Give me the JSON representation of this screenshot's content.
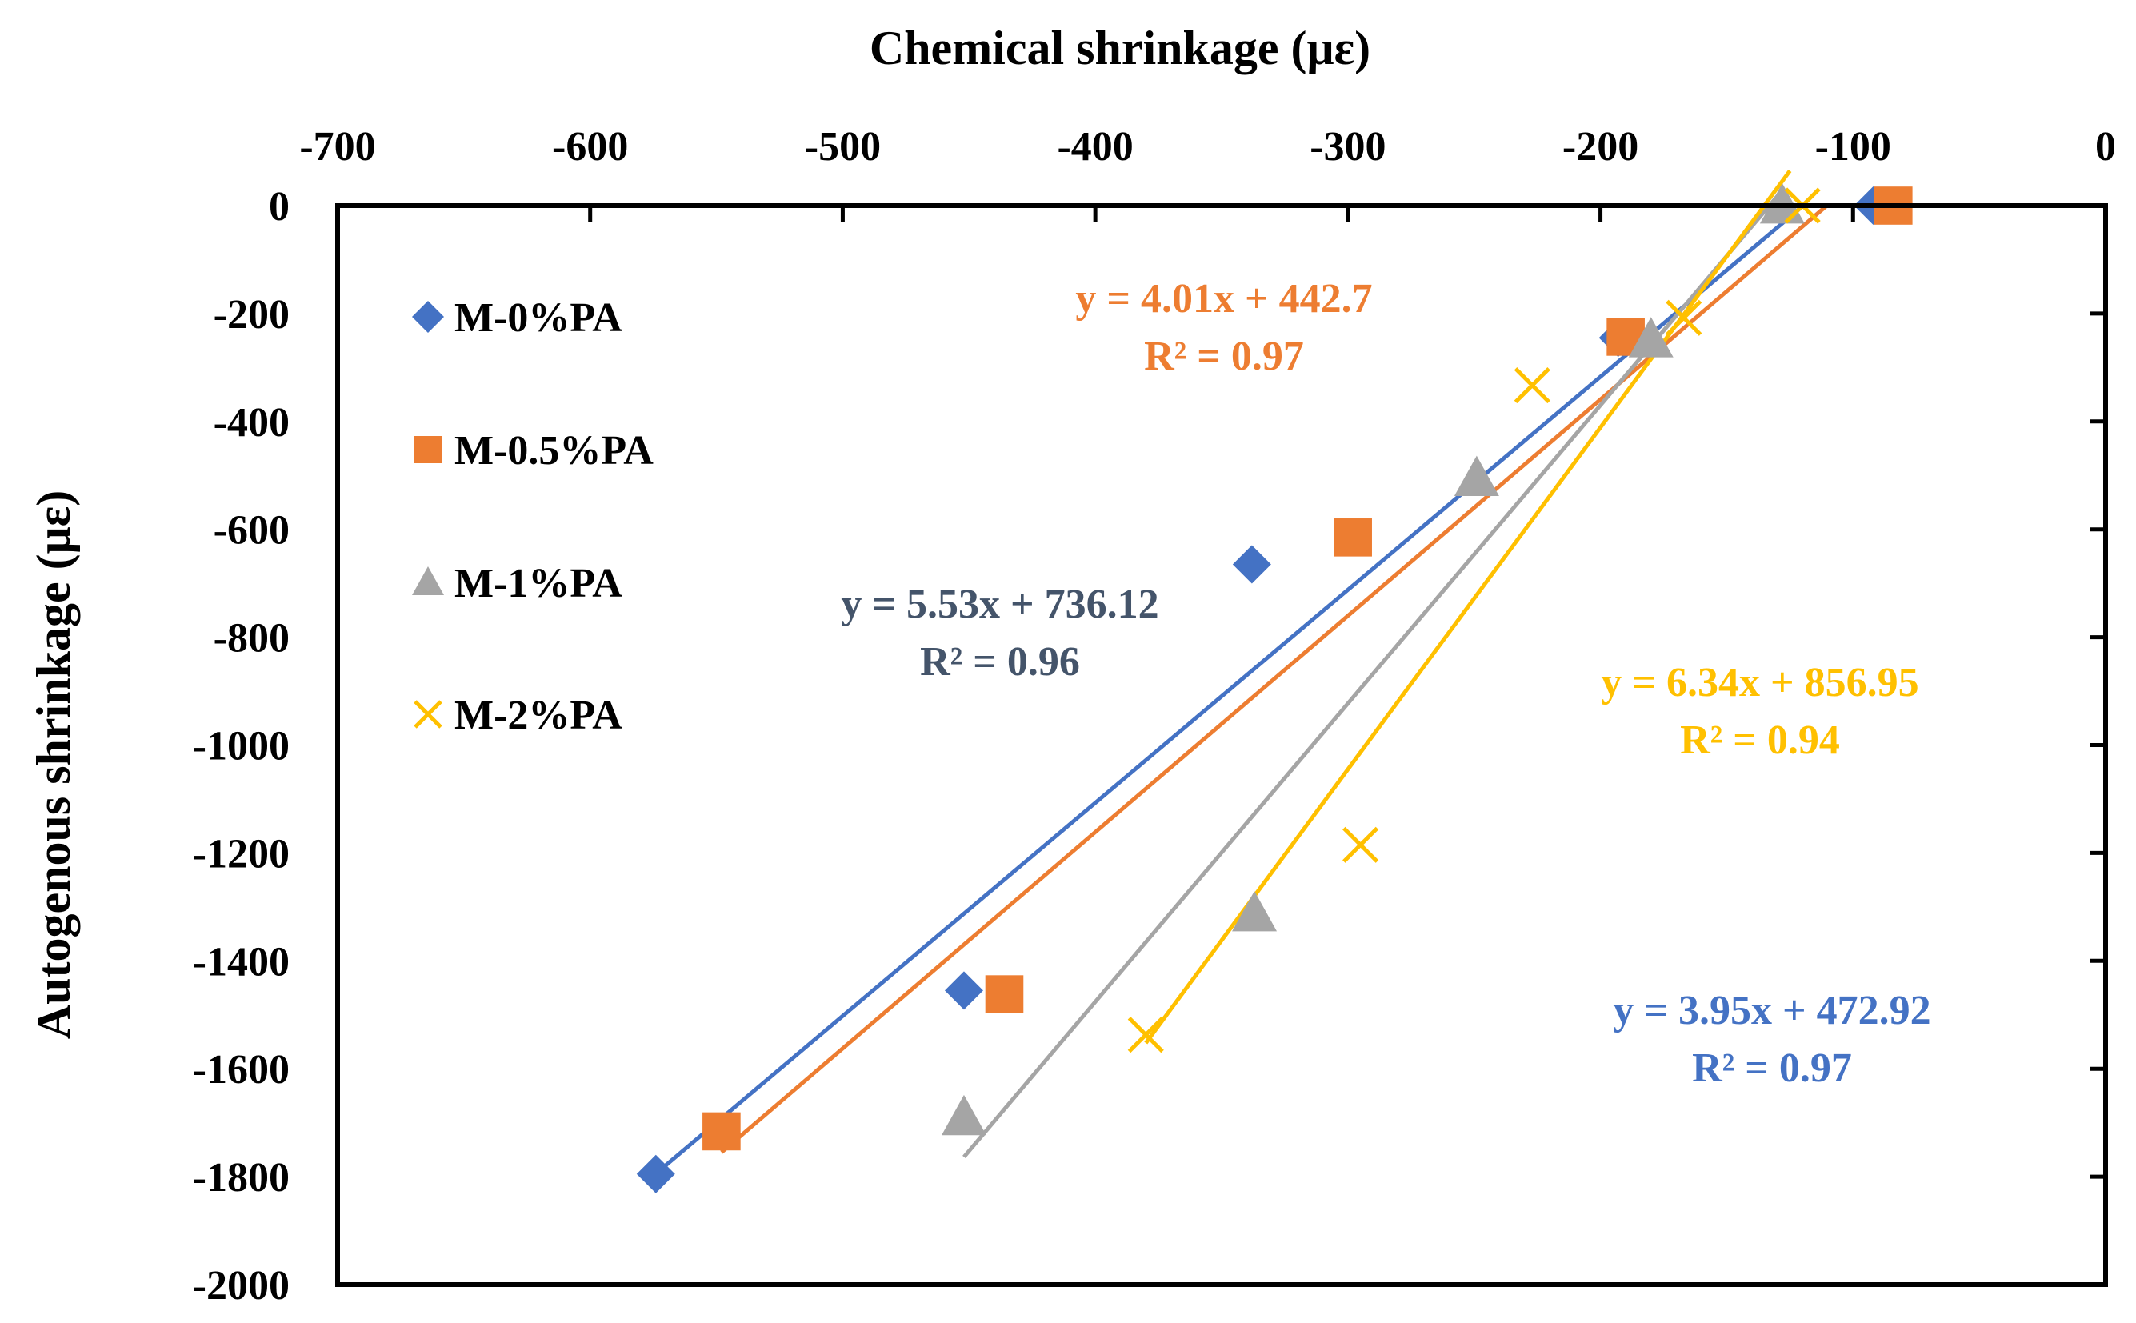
{
  "chart_data": {
    "type": "scatter",
    "title": "",
    "xlabel": "Chemical shrinkage (με)",
    "ylabel": "Autogenous shrinkage (με)",
    "xlim": [
      -700,
      0
    ],
    "ylim": [
      -2000,
      0
    ],
    "x_ticks": [
      -700,
      -600,
      -500,
      -400,
      -300,
      -200,
      -100,
      0
    ],
    "x_tick_labels": [
      "-700",
      "-600",
      "-500",
      "-400",
      "-300",
      "-200",
      "-100",
      "0"
    ],
    "y_ticks": [
      0,
      -200,
      -400,
      -600,
      -800,
      -1000,
      -1200,
      -1400,
      -1600,
      -1800,
      -2000
    ],
    "y_tick_labels": [
      "0",
      "-200",
      "-400",
      "-600",
      "-800",
      "-1000",
      "-1200",
      "-1400",
      "-1600",
      "-1800",
      "-2000"
    ],
    "x_axis_position": "top",
    "grid": false,
    "legend_position": "top-left",
    "series": [
      {
        "name": "M-0%PA",
        "marker": "diamond",
        "color": "#4472C4",
        "x": [
          -92,
          -193,
          -338,
          -452,
          -574
        ],
        "y": [
          0,
          -245,
          -665,
          -1455,
          -1795
        ],
        "trendline": {
          "slope": 3.95,
          "intercept": 472.92,
          "x_range": [
            -575,
            -120
          ]
        },
        "equation": "y = 3.95x + 472.92",
        "r2": "R² = 0.97"
      },
      {
        "name": "M-0.5%PA",
        "marker": "square",
        "color": "#ED7D31",
        "x": [
          -84,
          -190,
          -298,
          -436,
          -548
        ],
        "y": [
          0,
          -243,
          -615,
          -1462,
          -1716
        ],
        "trendline": {
          "slope": 4.01,
          "intercept": 442.7,
          "x_range": [
            -548,
            -110
          ]
        },
        "equation": "y = 4.01x + 442.7",
        "r2": "R² = 0.97"
      },
      {
        "name": "M-1%PA",
        "marker": "triangle",
        "color": "#A5A5A5",
        "x": [
          -128,
          -180,
          -249,
          -337,
          -452
        ],
        "y": [
          0,
          -248,
          -505,
          -1312,
          -1690
        ],
        "trendline": {
          "slope": 5.53,
          "intercept": 736.12,
          "x_range": [
            -452,
            -130
          ]
        },
        "equation": "y = 5.53x + 736.12",
        "r2": "R² = 0.96"
      },
      {
        "name": "M-2%PA",
        "marker": "x",
        "color": "#FFC000",
        "x": [
          -120,
          -167,
          -227,
          -295,
          -380
        ],
        "y": [
          0,
          -208,
          -333,
          -1185,
          -1537
        ],
        "trendline": {
          "slope": 6.34,
          "intercept": 856.95,
          "x_range": [
            -380,
            -125
          ]
        },
        "equation": "y = 6.34x + 856.95",
        "r2": "R² = 0.94"
      }
    ],
    "annotation_colors": {
      "M-0%PA": "#4472C4",
      "M-0.5%PA": "#ED7D31",
      "M-1%PA": "#44546A",
      "M-2%PA": "#FFC000"
    }
  }
}
